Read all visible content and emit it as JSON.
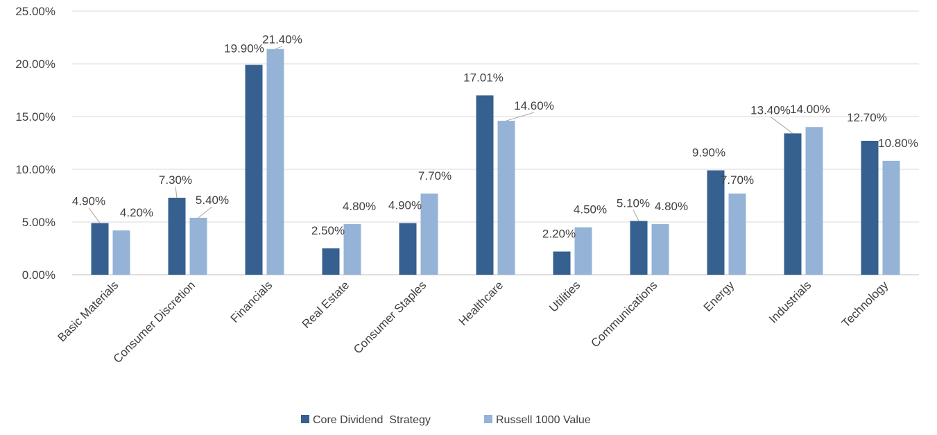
{
  "chart_data": {
    "type": "bar",
    "categories": [
      "Basic Materials",
      "Consumer Discretion",
      "Financials",
      "Real Estate",
      "Consumer Staples",
      "Healthcare",
      "Utilities",
      "Communications",
      "Energy",
      "Industrials",
      "Technology"
    ],
    "series": [
      {
        "name": "Core Dividend  Strategy",
        "color": "#35608f",
        "values": [
          4.9,
          7.3,
          19.9,
          2.5,
          4.9,
          17.01,
          2.2,
          5.1,
          9.9,
          13.4,
          12.7
        ],
        "labels": [
          "4.90%",
          "7.30%",
          "19.90%",
          "2.50%",
          "4.90%",
          "17.01%",
          "2.20%",
          "5.10%",
          "9.90%",
          "13.40%",
          "12.70%"
        ]
      },
      {
        "name": "Russell 1000 Value",
        "color": "#95b3d7",
        "values": [
          4.2,
          5.4,
          21.4,
          4.8,
          7.7,
          14.6,
          4.5,
          4.8,
          7.7,
          14.0,
          10.8
        ],
        "labels": [
          "4.20%",
          "5.40%",
          "21.40%",
          "4.80%",
          "7.70%",
          "14.60%",
          "4.50%",
          "4.80%",
          "7.70%",
          "14.00%",
          "10.80%"
        ]
      }
    ],
    "yticks": [
      "0.00%",
      "5.00%",
      "10.00%",
      "15.00%",
      "20.00%",
      "25.00%"
    ],
    "ylim": [
      0,
      25
    ],
    "grid": true,
    "legend_position": "bottom"
  }
}
